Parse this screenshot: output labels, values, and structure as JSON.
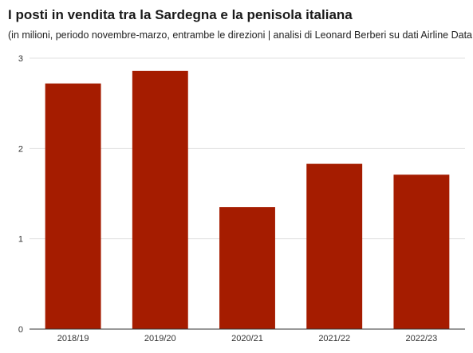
{
  "chart_data": {
    "type": "bar",
    "title": "I posti in vendita tra la Sardegna e la penisola italiana",
    "subtitle": "(in milioni, periodo novembre-marzo, entrambe le direzioni | analisi di Leonard Berberi su dati Airline Data Inc)",
    "categories": [
      "2018/19",
      "2019/20",
      "2020/21",
      "2021/22",
      "2022/23"
    ],
    "values": [
      2.72,
      2.86,
      1.35,
      1.83,
      1.71
    ],
    "xlabel": "",
    "ylabel": "",
    "ylim": [
      0,
      3
    ],
    "yticks": [
      0,
      1,
      2,
      3
    ],
    "grid": true,
    "legend": "none",
    "bar_color": "#a51c00",
    "grid_color": "#e0e0e0",
    "axis_color": "#333333"
  }
}
